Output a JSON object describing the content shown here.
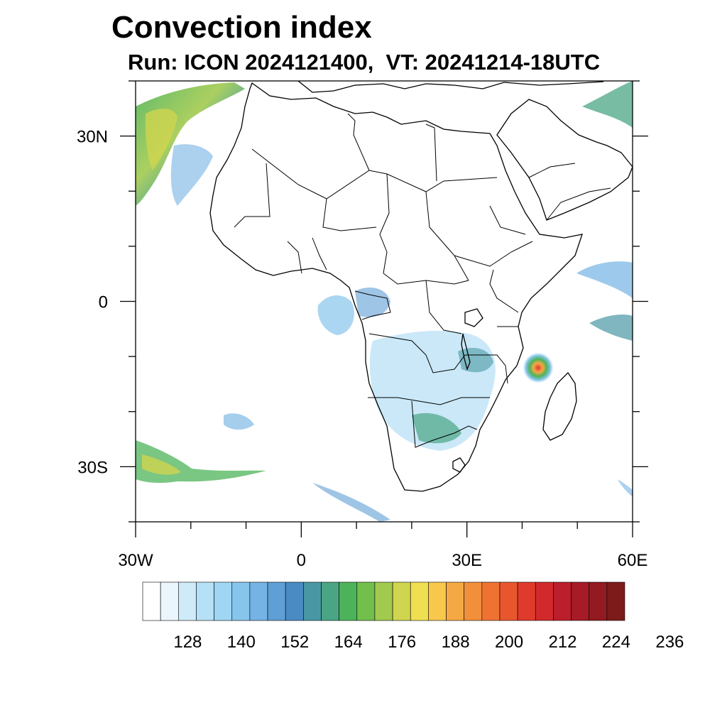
{
  "title": "Convection index",
  "subtitle": "Run: ICON 2024121400,  VT: 20241214-18UTC",
  "map": {
    "lon_labels": [
      "30W",
      "0",
      "30E",
      "60E"
    ],
    "lat_labels": [
      "30N",
      "0",
      "30S"
    ],
    "extent": {
      "lon_min": -30,
      "lon_max": 60,
      "lat_min": -40,
      "lat_max": 40
    },
    "features": [
      "coastlines",
      "country-borders",
      "convection-field-north-atlantic",
      "convection-field-central-africa",
      "convection-field-southern-africa",
      "convection-field-mozambique-channel-cyclone",
      "convection-field-south-atlantic"
    ]
  },
  "colorbar": {
    "tick_labels": [
      "128",
      "140",
      "152",
      "164",
      "176",
      "188",
      "200",
      "212",
      "224",
      "236"
    ],
    "colors": [
      "#ffffff",
      "#eaf6fc",
      "#cfeaf8",
      "#b6e0f6",
      "#9fd6f3",
      "#88c5ec",
      "#74b3e4",
      "#5f9fd6",
      "#4b8bc4",
      "#4997a4",
      "#4aa584",
      "#4db35a",
      "#72bf4c",
      "#a2ca4e",
      "#cfd54f",
      "#f0df51",
      "#f7c84c",
      "#f5a944",
      "#f28f3b",
      "#ee7333",
      "#e8562d",
      "#e03a2c",
      "#d22a2c",
      "#bc1f2c",
      "#a61b26",
      "#921a20",
      "#7d1a1a"
    ]
  }
}
